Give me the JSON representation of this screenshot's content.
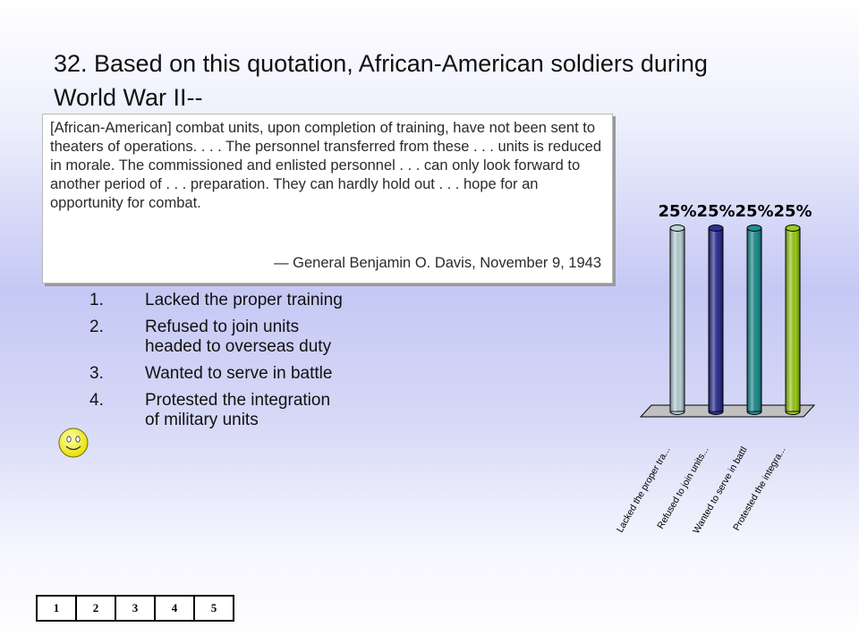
{
  "slide": {
    "title": "32.  Based on this quotation, African-American soldiers during World War II--"
  },
  "quote": {
    "text": "[African-American] combat units, upon completion of training, have not been sent to theaters of operations. . . . The personnel transferred from these . . . units is reduced in morale. The commissioned and enlisted personnel . . . can only look forward to another period of . . . preparation. They can hardly hold out . . . hope for an opportunity for combat.",
    "attribution": "— General Benjamin O. Davis, November 9, 1943"
  },
  "answers": [
    {
      "num": "1.",
      "label": "Lacked the proper training"
    },
    {
      "num": "2.",
      "label": "Refused to join units headed to overseas duty"
    },
    {
      "num": "3.",
      "label": "Wanted to serve in battle"
    },
    {
      "num": "4.",
      "label": "Protested the integration of military units"
    }
  ],
  "correct_marker": {
    "icon": "smiley-icon",
    "answer_index": 3,
    "color": "#f2ef2e"
  },
  "chart_data": {
    "type": "bar",
    "categories": [
      "Lacked the proper tra...",
      "Refused to join units...",
      "Wanted to serve in battl",
      "Protested the integra..."
    ],
    "values": [
      25,
      25,
      25,
      25
    ],
    "data_labels": [
      "25%",
      "25%",
      "25%",
      "25%"
    ],
    "ylim": [
      0,
      25
    ],
    "colors": [
      "#b9d3d8",
      "#2e3192",
      "#1f9090",
      "#9acd1a"
    ],
    "grid": false,
    "legend": "none",
    "style": "3d-cylinder"
  },
  "keypad": {
    "keys": [
      "1",
      "2",
      "3",
      "4",
      "5"
    ]
  }
}
